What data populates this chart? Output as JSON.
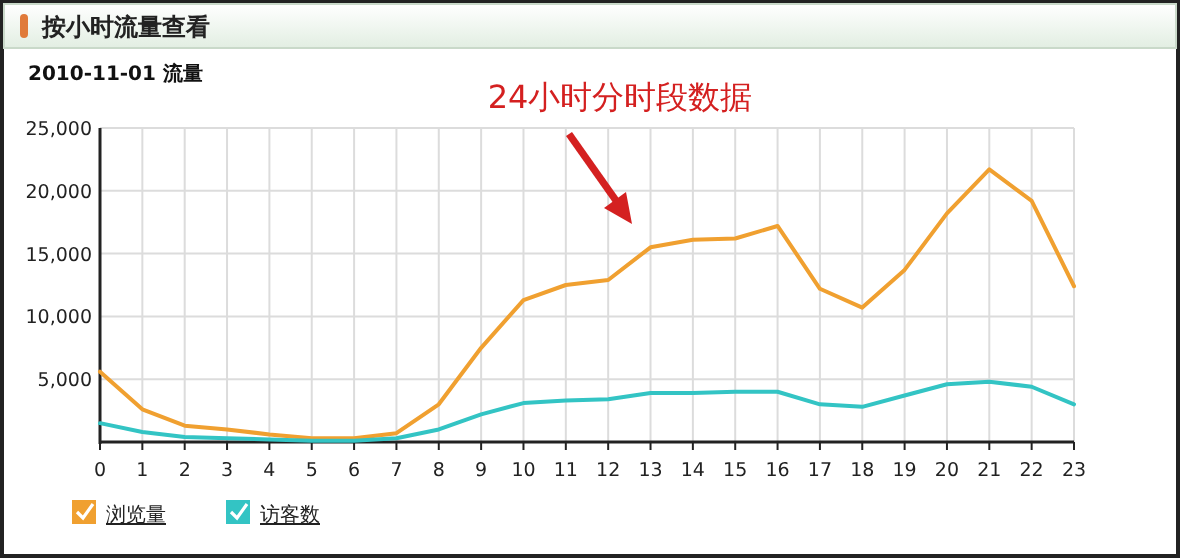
{
  "chart_data": {
    "type": "line",
    "title": "按小时流量查看",
    "subtitle": "2010-11-01 流量",
    "annotations": [
      "24小时分时段数据"
    ],
    "x": [
      0,
      1,
      2,
      3,
      4,
      5,
      6,
      7,
      8,
      9,
      10,
      11,
      12,
      13,
      14,
      15,
      16,
      17,
      18,
      19,
      20,
      21,
      22,
      23
    ],
    "series": [
      {
        "name": "浏览量",
        "color": "#f0a030",
        "values": [
          5600,
          2600,
          1300,
          1000,
          600,
          300,
          300,
          700,
          3000,
          7500,
          11300,
          12500,
          12900,
          15500,
          16100,
          16200,
          17200,
          12200,
          10700,
          13700,
          18200,
          21700,
          19200,
          12400
        ]
      },
      {
        "name": "访客数",
        "color": "#33c4c4",
        "values": [
          1500,
          800,
          400,
          300,
          200,
          100,
          100,
          300,
          1000,
          2200,
          3100,
          3300,
          3400,
          3900,
          3900,
          4000,
          4000,
          3000,
          2800,
          3700,
          4600,
          4800,
          4400,
          3000
        ]
      }
    ],
    "xlim": [
      0,
      23
    ],
    "xticks": [
      0,
      1,
      2,
      3,
      4,
      5,
      6,
      7,
      8,
      9,
      10,
      11,
      12,
      13,
      14,
      15,
      16,
      17,
      18,
      19,
      20,
      21,
      22,
      23
    ],
    "ylim": [
      0,
      25000
    ],
    "yticks": [
      {
        "value": 0,
        "label": null
      },
      {
        "value": 5000,
        "label": "5,000"
      },
      {
        "value": 10000,
        "label": "10,000"
      },
      {
        "value": 15000,
        "label": "15,000"
      },
      {
        "value": 20000,
        "label": "20,000"
      },
      {
        "value": 25000,
        "label": "25,000"
      }
    ],
    "grid": true,
    "legend": "bottom left",
    "marker": "none",
    "line_style": "solid"
  }
}
